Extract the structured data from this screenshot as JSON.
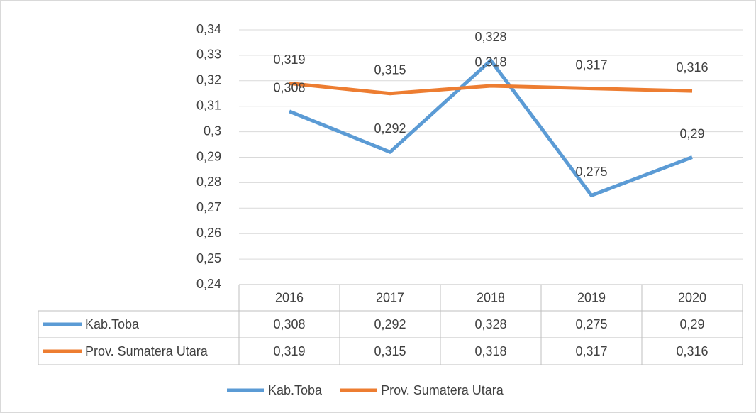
{
  "chart_data": {
    "type": "line",
    "categories": [
      "2016",
      "2017",
      "2018",
      "2019",
      "2020"
    ],
    "series": [
      {
        "name": "Kab.Toba",
        "color": "#5b9bd5",
        "values": [
          0.308,
          0.292,
          0.328,
          0.275,
          0.29
        ],
        "value_labels": [
          "0,308",
          "0,292",
          "0,328",
          "0,275",
          "0,29"
        ]
      },
      {
        "name": "Prov. Sumatera Utara",
        "color": "#ed7d31",
        "values": [
          0.319,
          0.315,
          0.318,
          0.317,
          0.316
        ],
        "value_labels": [
          "0,319",
          "0,315",
          "0,318",
          "0,317",
          "0,316"
        ]
      }
    ],
    "ylim": [
      0.24,
      0.34
    ],
    "yticks": [
      {
        "value": 0.24,
        "label": "0,24"
      },
      {
        "value": 0.25,
        "label": "0,25"
      },
      {
        "value": 0.26,
        "label": "0,26"
      },
      {
        "value": 0.27,
        "label": "0,27"
      },
      {
        "value": 0.28,
        "label": "0,28"
      },
      {
        "value": 0.29,
        "label": "0,29"
      },
      {
        "value": 0.3,
        "label": "0,3"
      },
      {
        "value": 0.31,
        "label": "0,31"
      },
      {
        "value": 0.32,
        "label": "0,32"
      },
      {
        "value": 0.33,
        "label": "0,33"
      },
      {
        "value": 0.34,
        "label": "0,34"
      }
    ],
    "grid": true,
    "data_table": true,
    "legend": "bottom"
  }
}
